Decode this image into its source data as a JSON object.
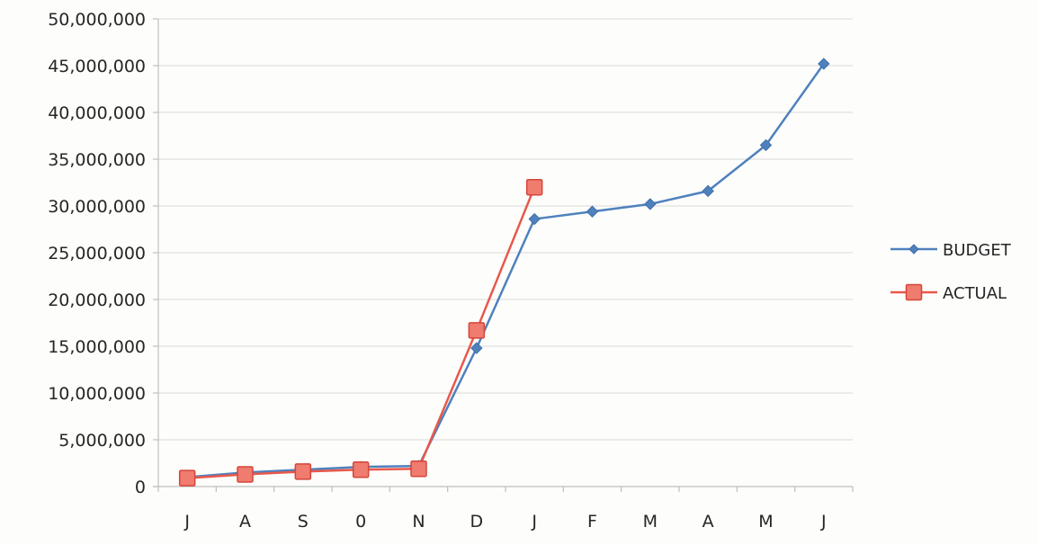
{
  "chart_data": {
    "type": "line",
    "categories": [
      "J",
      "A",
      "S",
      "0",
      "N",
      "D",
      "J",
      "F",
      "M",
      "A",
      "M",
      "J"
    ],
    "series": [
      {
        "name": "BUDGET",
        "color": "#4f81bd",
        "marker": "diamond",
        "values": [
          1000000,
          1500000,
          1800000,
          2100000,
          2200000,
          14800000,
          28600000,
          29400000,
          30200000,
          31600000,
          36500000,
          45200000
        ]
      },
      {
        "name": "ACTUAL",
        "color": "#e8584b",
        "marker": "square",
        "values": [
          900000,
          1300000,
          1600000,
          1800000,
          1900000,
          16700000,
          32000000,
          null,
          null,
          null,
          null,
          null
        ]
      }
    ],
    "yticks": [
      "0",
      "5,000,000",
      "10,000,000",
      "15,000,000",
      "20,000,000",
      "25,000,000",
      "30,000,000",
      "35,000,000",
      "40,000,000",
      "45,000,000",
      "50,000,000"
    ],
    "ylim": [
      0,
      50000000
    ],
    "ystep": 5000000,
    "grid": true,
    "legend_position": "right"
  }
}
